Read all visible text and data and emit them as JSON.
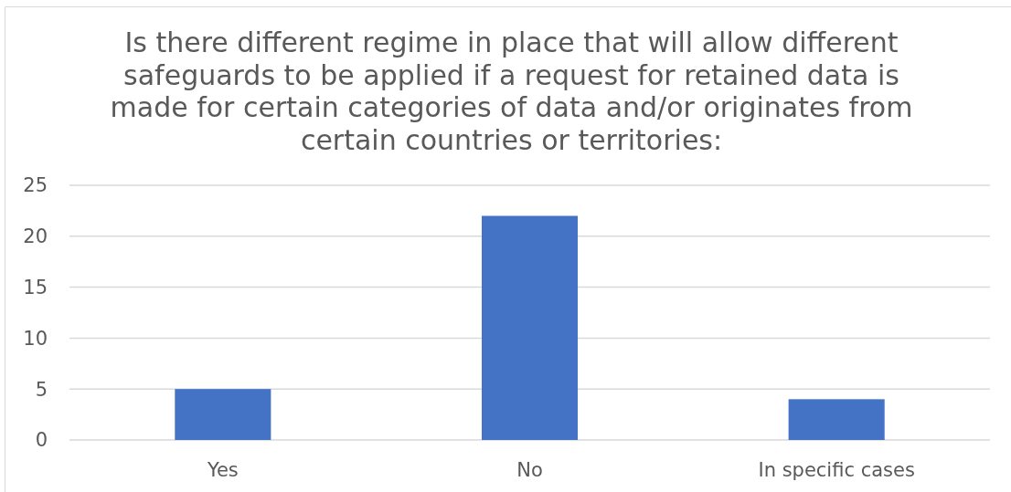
{
  "chart_data": {
    "type": "bar",
    "title": "Is there different regime in place that will allow different safeguards to be applied if a request for retained data is made for certain categories of data and/or originates from certain countries or territories:",
    "categories": [
      "Yes",
      "No",
      "In specific cases"
    ],
    "values": [
      5,
      22,
      4
    ],
    "color": "#4472c4",
    "ylim": [
      0,
      25
    ],
    "yticks": [
      0,
      5,
      10,
      15,
      20,
      25
    ],
    "grid": "y"
  }
}
